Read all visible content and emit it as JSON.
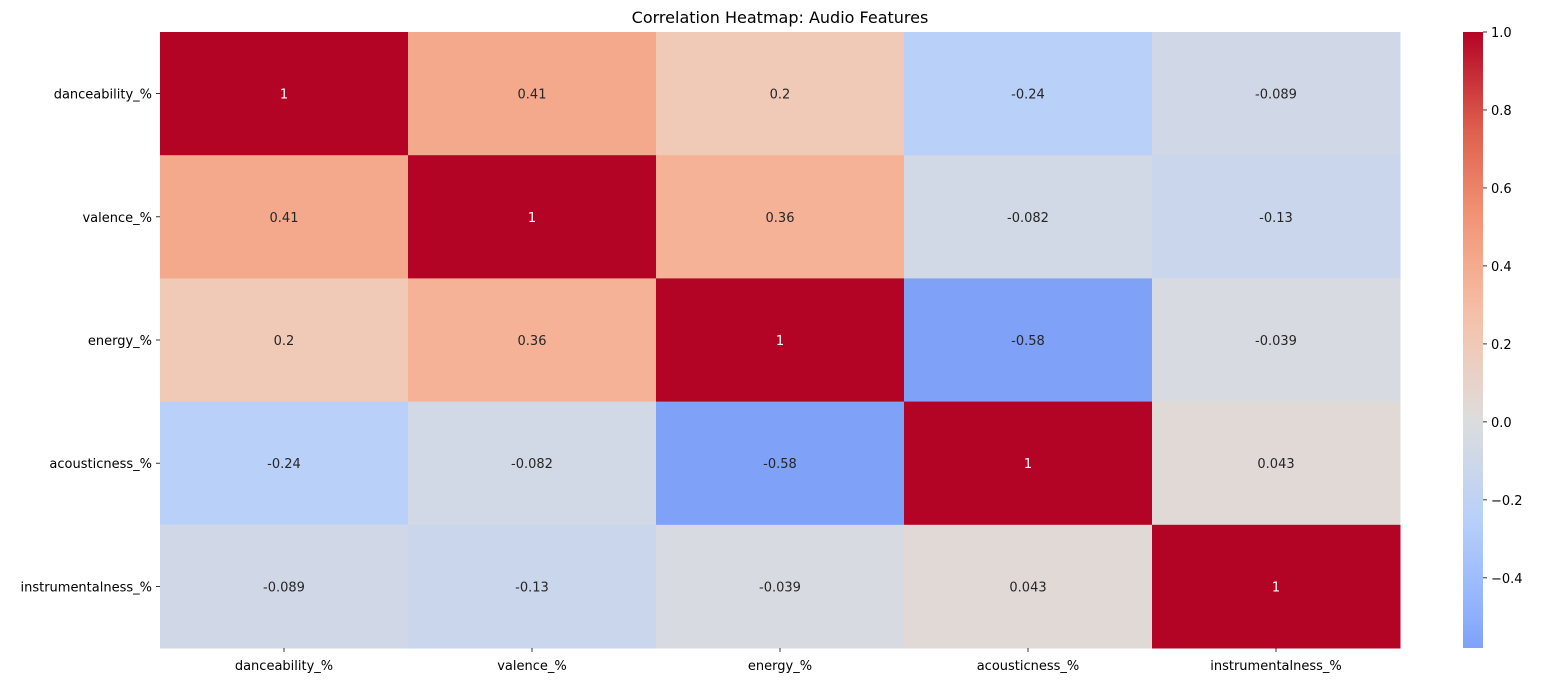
{
  "chart_data": {
    "type": "heatmap",
    "title": "Correlation Heatmap: Audio Features",
    "x_labels": [
      "danceability_%",
      "valence_%",
      "energy_%",
      "acousticness_%",
      "instrumentalness_%"
    ],
    "y_labels": [
      "danceability_%",
      "valence_%",
      "energy_%",
      "acousticness_%",
      "instrumentalness_%"
    ],
    "values": [
      [
        1,
        0.41,
        0.2,
        -0.24,
        -0.089
      ],
      [
        0.41,
        1,
        0.36,
        -0.082,
        -0.13
      ],
      [
        0.2,
        0.36,
        1,
        -0.58,
        -0.039
      ],
      [
        -0.24,
        -0.082,
        -0.58,
        1,
        0.043
      ],
      [
        -0.089,
        -0.13,
        -0.039,
        0.043,
        1
      ]
    ],
    "annotations": [
      [
        "1",
        "0.41",
        "0.2",
        "-0.24",
        "-0.089"
      ],
      [
        "0.41",
        "1",
        "0.36",
        "-0.082",
        "-0.13"
      ],
      [
        "0.2",
        "0.36",
        "1",
        "-0.58",
        "-0.039"
      ],
      [
        "-0.24",
        "-0.082",
        "-0.58",
        "1",
        "0.043"
      ],
      [
        "-0.089",
        "-0.13",
        "-0.039",
        "0.043",
        "1"
      ]
    ],
    "colormap": "coolwarm",
    "center": 0,
    "vmin": -0.58,
    "vmax": 1.0,
    "colorbar": {
      "ticks": [
        1.0,
        0.8,
        0.6,
        0.4,
        0.2,
        0.0,
        -0.2,
        -0.4
      ],
      "tick_labels": [
        "1.0",
        "0.8",
        "0.6",
        "0.4",
        "0.2",
        "0.0",
        "−0.2",
        "−0.4"
      ]
    }
  }
}
